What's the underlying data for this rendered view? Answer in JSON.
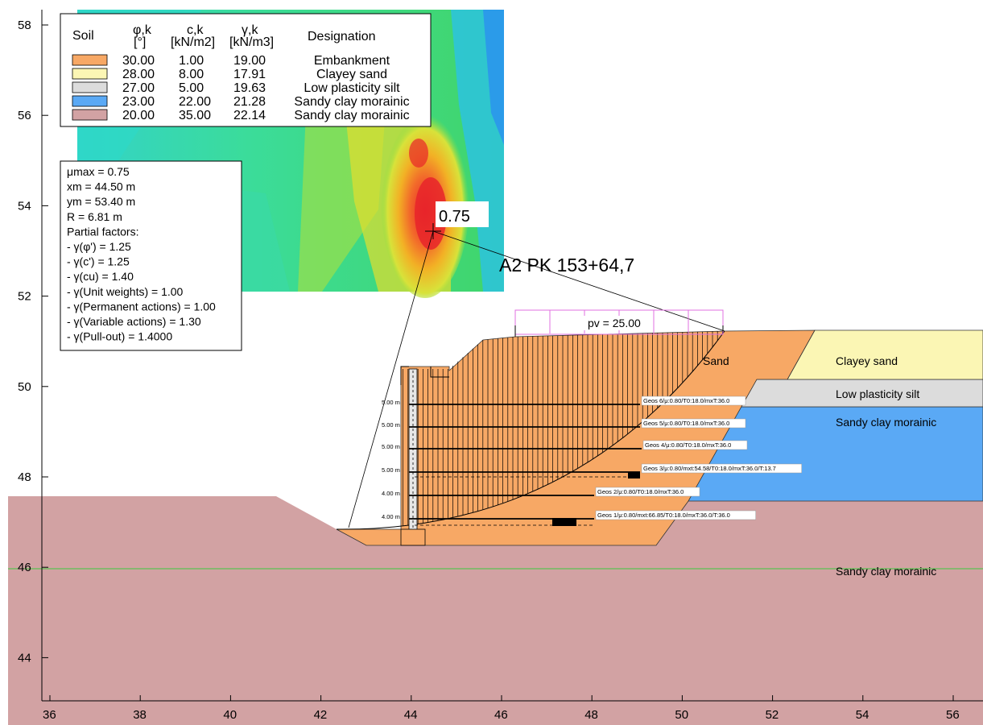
{
  "axes": {
    "x_ticks": [
      "36",
      "38",
      "40",
      "42",
      "44",
      "46",
      "48",
      "50",
      "52",
      "54",
      "56"
    ],
    "y_ticks": [
      "58",
      "56",
      "54",
      "52",
      "50",
      "48",
      "46",
      "44"
    ]
  },
  "legend_table": {
    "headers": {
      "soil": "Soil",
      "phi": "φ,k",
      "phi_unit": "[°]",
      "c": "c,k",
      "c_unit": "[kN/m2]",
      "gamma": "γ,k",
      "gamma_unit": "[kN/m3]",
      "designation": "Designation"
    },
    "rows": [
      {
        "color": "#f7a865",
        "phi": "30.00",
        "c": "1.00",
        "gamma": "19.00",
        "name": "Embankment"
      },
      {
        "color": "#fbf6b4",
        "phi": "28.00",
        "c": "8.00",
        "gamma": "17.91",
        "name": "Clayey sand"
      },
      {
        "color": "#dcdcdc",
        "phi": "27.00",
        "c": "5.00",
        "gamma": "19.63",
        "name": "Low plasticity silt"
      },
      {
        "color": "#5aa9f5",
        "phi": "23.00",
        "c": "22.00",
        "gamma": "21.28",
        "name": "Sandy clay morainic"
      },
      {
        "color": "#d2a2a3",
        "phi": "20.00",
        "c": "35.00",
        "gamma": "22.14",
        "name": "Sandy clay morainic"
      }
    ]
  },
  "results": {
    "lines": [
      "μmax = 0.75",
      "xm = 44.50 m",
      "ym = 53.40 m",
      "R = 6.81 m",
      "Partial factors:",
      " - γ(φ') = 1.25",
      " - γ(c') = 1.25",
      " - γ(cu) = 1.40",
      " - γ(Unit weights) = 1.00",
      " - γ(Permanent actions) = 1.00",
      " - γ(Variable actions) = 1.30",
      " - γ(Pull-out) = 1.4000"
    ]
  },
  "center_label": "0.75",
  "section_title": "A2 PK 153+64,7",
  "load_label": "pv = 25.00",
  "soil_labels": {
    "sand": "Sand",
    "clayey_sand": "Clayey sand",
    "low_plasticity_silt": "Low plasticity silt",
    "sandy_clay_1": "Sandy clay morainic",
    "sandy_clay_2": "Sandy clay morainic"
  },
  "reinforcements": [
    {
      "spacing": "5.00 m",
      "label": "Geos 6/μ:0.80/T0:18.0/mxT:36.0"
    },
    {
      "spacing": "5.00 m",
      "label": "Geos 5/μ:0.80/T0:18.0/mxT:36.0"
    },
    {
      "spacing": "5.00 m",
      "label": "Geos 4/μ:0.80/T0:18.0/mxT:36.0"
    },
    {
      "spacing": "5.00 m",
      "label": "Geos 3/μ:0.80/mxt:54.58/T0:18.0/mxT:36.0/T:13.7"
    },
    {
      "spacing": "4.00 m",
      "label": "Geos 2/μ:0.80/T0:18.0/mxT:36.0"
    },
    {
      "spacing": "4.00 m",
      "label": "Geos 1/μ:0.80/mxt:66.85/T0:18.0/mxT:36.0/T:36.0"
    }
  ],
  "colors": {
    "embankment": "#f7a865",
    "clayey_sand": "#fbf6b4",
    "silt": "#dcdcdc",
    "sandy_clay_blue": "#5aa9f5",
    "sandy_clay_base": "#d2a2a3",
    "load": "#e070e0",
    "water": "#3cc93c"
  }
}
